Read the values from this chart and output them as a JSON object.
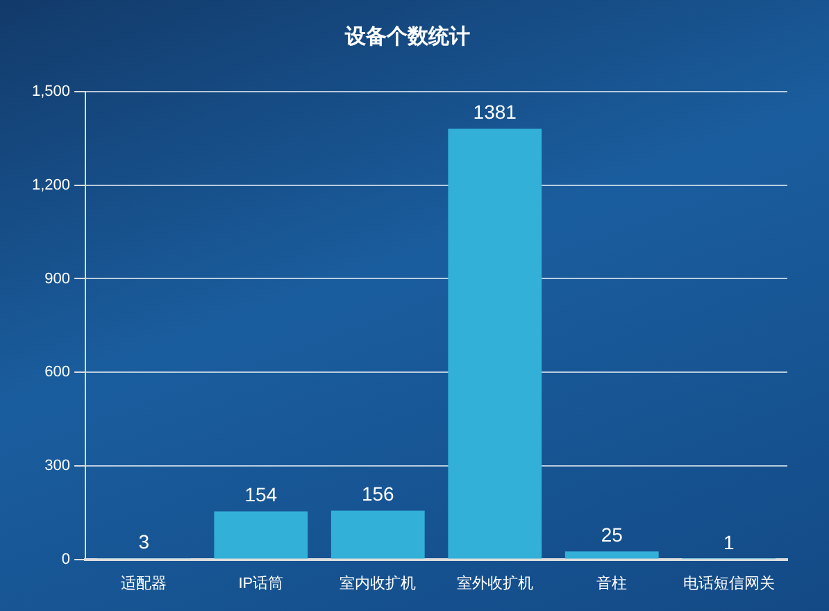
{
  "chart_data": {
    "type": "bar",
    "title": "设备个数统计",
    "categories": [
      "适配器",
      "IP话筒",
      "室内收扩机",
      "室外收扩机",
      "音柱",
      "电话短信网关"
    ],
    "values": [
      3,
      154,
      156,
      1381,
      25,
      1
    ],
    "color": "#33b0d8",
    "ylim": [
      0,
      1500
    ],
    "yticks": [
      0,
      300,
      600,
      900,
      {
        "value": 1200,
        "label": "1,200"
      },
      {
        "value": 1500,
        "label": "1,500"
      }
    ],
    "grid": "y",
    "data_labels": true
  }
}
